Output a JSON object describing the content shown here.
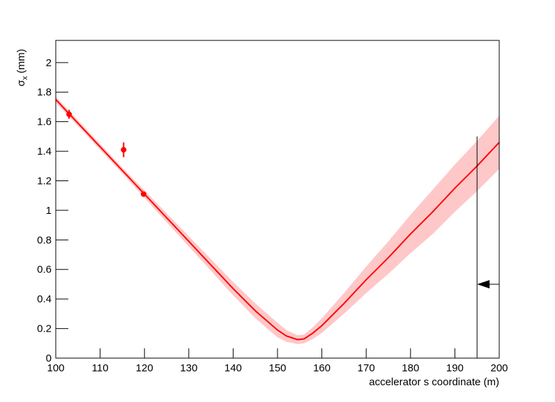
{
  "chart_data": {
    "type": "line",
    "x_label": "accelerator s coordinate (m)",
    "y_label": {
      "symbol": "σ",
      "subscript": "x",
      "unit": "(mm)"
    },
    "xlim": [
      100,
      200
    ],
    "xticks": [
      100,
      110,
      120,
      130,
      140,
      150,
      160,
      170,
      180,
      190,
      200
    ],
    "ylim": [
      0,
      2.15
    ],
    "yticks": [
      0,
      0.2,
      0.4,
      0.6,
      0.8,
      1,
      1.2,
      1.4,
      1.6,
      1.8,
      2
    ],
    "color": "#ff0000",
    "band_color": "#ffc8c8",
    "x": [
      100,
      105,
      110,
      115,
      120,
      125,
      130,
      135,
      140,
      145,
      150,
      152,
      154.5,
      156,
      158,
      160,
      165,
      170,
      175,
      180,
      185,
      190,
      195,
      200
    ],
    "values": [
      1.75,
      1.59,
      1.43,
      1.27,
      1.11,
      0.95,
      0.79,
      0.63,
      0.47,
      0.32,
      0.19,
      0.15,
      0.125,
      0.13,
      0.17,
      0.22,
      0.37,
      0.53,
      0.68,
      0.84,
      0.99,
      1.15,
      1.3,
      1.46
    ],
    "upper": [
      1.77,
      1.61,
      1.45,
      1.29,
      1.135,
      0.98,
      0.825,
      0.67,
      0.515,
      0.37,
      0.24,
      0.19,
      0.155,
      0.16,
      0.21,
      0.27,
      0.44,
      0.62,
      0.79,
      0.97,
      1.14,
      1.31,
      1.47,
      1.64
    ],
    "lower": [
      1.73,
      1.57,
      1.41,
      1.25,
      1.085,
      0.92,
      0.755,
      0.59,
      0.425,
      0.27,
      0.14,
      0.11,
      0.095,
      0.1,
      0.13,
      0.17,
      0.3,
      0.44,
      0.57,
      0.71,
      0.84,
      0.99,
      1.13,
      1.28
    ],
    "points": {
      "x": [
        103,
        115.3,
        119.8
      ],
      "values": [
        1.65,
        1.41,
        1.11
      ],
      "errors": [
        0.03,
        0.05,
        0.015
      ]
    },
    "marker": {
      "x": 195,
      "ymax": 1.5,
      "arrow_y": 0.5
    }
  }
}
